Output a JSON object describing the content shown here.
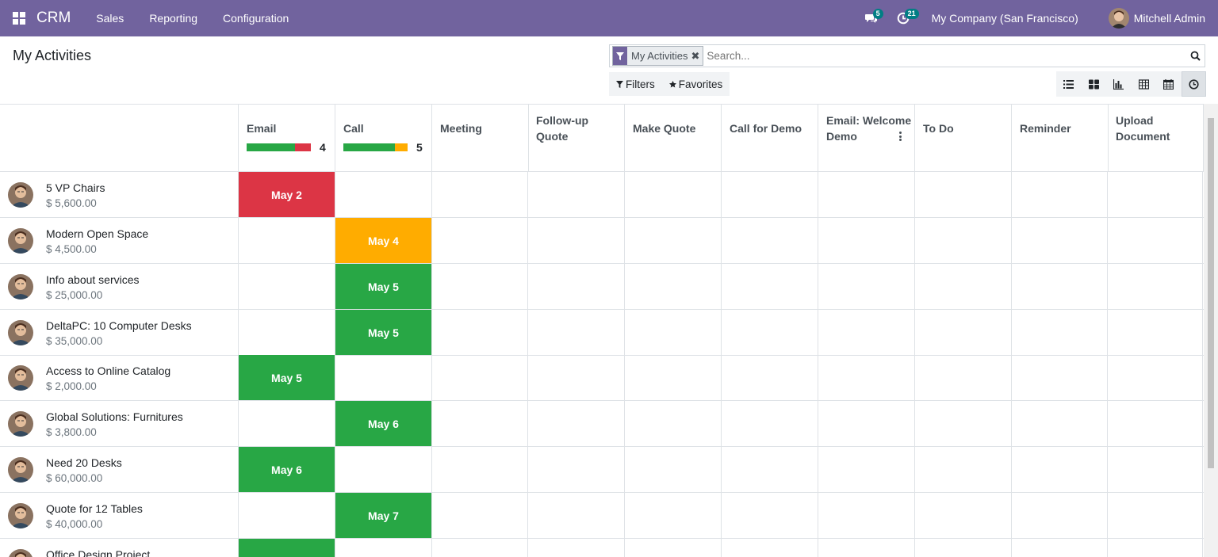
{
  "navbar": {
    "app_name": "CRM",
    "menu": [
      "Sales",
      "Reporting",
      "Configuration"
    ],
    "messages_count": "5",
    "activities_count": "21",
    "company": "My Company (San Francisco)",
    "user_name": "Mitchell Admin",
    "color": "#71639e"
  },
  "page": {
    "title": "My Activities"
  },
  "search": {
    "facet": "My Activities",
    "placeholder": "Search...",
    "filters_label": "Filters",
    "favorites_label": "Favorites"
  },
  "views": [
    "list-view-icon",
    "kanban-view-icon",
    "graph-view-icon",
    "pivot-view-icon",
    "calendar-view-icon",
    "activity-view-icon"
  ],
  "colors": {
    "overdue": "#dc3545",
    "today": "#ffac00",
    "planned": "#28a745"
  },
  "columns": [
    {
      "line1": "Email",
      "line2": "",
      "count": "4",
      "progress": {
        "planned": 0.75,
        "today": 0,
        "overdue": 0.25
      }
    },
    {
      "line1": "Call",
      "line2": "",
      "count": "5",
      "progress": {
        "planned": 0.8,
        "today": 0.2,
        "overdue": 0
      }
    },
    {
      "line1": "Meeting",
      "line2": ""
    },
    {
      "line1": "Follow-up",
      "line2": "Quote"
    },
    {
      "line1": "Make Quote",
      "line2": ""
    },
    {
      "line1": "Call for Demo",
      "line2": ""
    },
    {
      "line1": "Email: Welcome",
      "line2": "Demo"
    },
    {
      "line1": "To Do",
      "line2": ""
    },
    {
      "line1": "Reminder",
      "line2": ""
    },
    {
      "line1": "Upload",
      "line2": "Document"
    }
  ],
  "records": [
    {
      "name": "5 VP Chairs",
      "amount": "$ 5,600.00",
      "activity": {
        "col": 0,
        "label": "May 2",
        "state": "overdue"
      }
    },
    {
      "name": "Modern Open Space",
      "amount": "$ 4,500.00",
      "activity": {
        "col": 1,
        "label": "May 4",
        "state": "today"
      }
    },
    {
      "name": "Info about services",
      "amount": "$ 25,000.00",
      "activity": {
        "col": 1,
        "label": "May 5",
        "state": "planned"
      }
    },
    {
      "name": "DeltaPC: 10 Computer Desks",
      "amount": "$ 35,000.00",
      "activity": {
        "col": 1,
        "label": "May 5",
        "state": "planned"
      }
    },
    {
      "name": "Access to Online Catalog",
      "amount": "$ 2,000.00",
      "activity": {
        "col": 0,
        "label": "May 5",
        "state": "planned"
      }
    },
    {
      "name": "Global Solutions: Furnitures",
      "amount": "$ 3,800.00",
      "activity": {
        "col": 1,
        "label": "May 6",
        "state": "planned"
      }
    },
    {
      "name": "Need 20 Desks",
      "amount": "$ 60,000.00",
      "activity": {
        "col": 0,
        "label": "May 6",
        "state": "planned"
      }
    },
    {
      "name": "Quote for 12 Tables",
      "amount": "$ 40,000.00",
      "activity": {
        "col": 1,
        "label": "May 7",
        "state": "planned"
      }
    },
    {
      "name": "Office Design Project",
      "amount": "",
      "activity": {
        "col": 0,
        "label": "",
        "state": "planned"
      }
    }
  ]
}
